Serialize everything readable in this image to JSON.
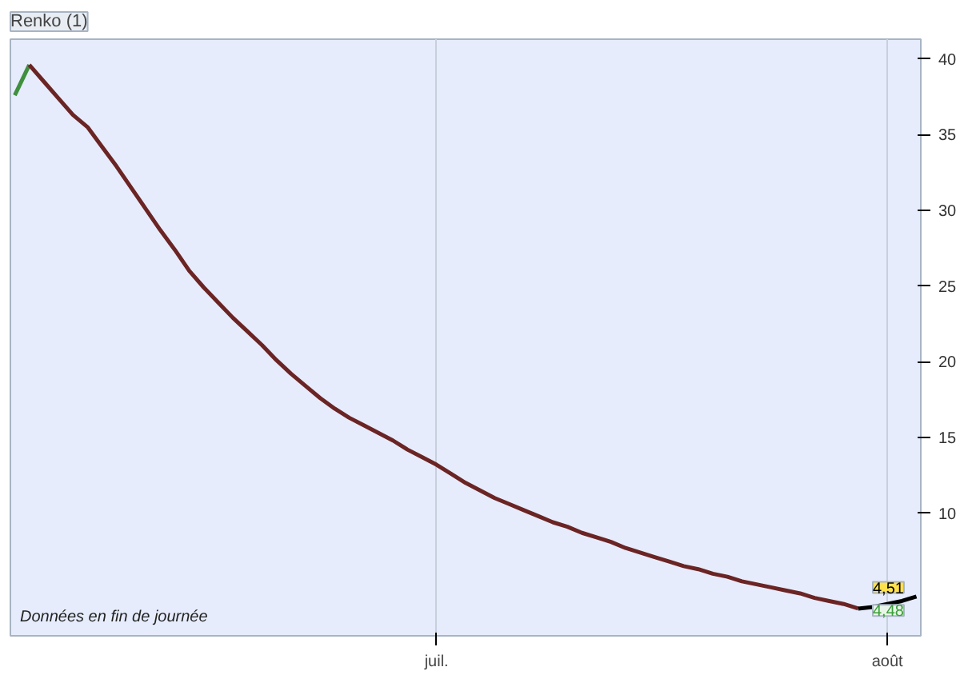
{
  "chart_data": {
    "type": "line",
    "title": "Renko (1)",
    "categories": [
      null,
      null,
      null,
      null,
      null,
      null,
      null,
      null,
      null,
      null,
      null,
      null,
      null,
      null,
      null,
      null,
      null,
      null,
      null,
      null,
      null,
      null,
      null,
      null,
      null,
      null,
      null,
      null,
      null,
      "juil.",
      null,
      null,
      null,
      null,
      null,
      null,
      null,
      null,
      null,
      null,
      null,
      null,
      null,
      null,
      null,
      null,
      null,
      null,
      null,
      null,
      null,
      null,
      null,
      null,
      null,
      null,
      null,
      null,
      null,
      null,
      "août",
      null,
      null
    ],
    "series": [
      {
        "color": "#3f8f3f",
        "values": [
          37.6,
          39.6,
          null,
          null,
          null,
          null,
          null,
          null,
          null,
          null,
          null,
          null,
          null,
          null,
          null,
          null,
          null,
          null,
          null,
          null,
          null,
          null,
          null,
          null,
          null,
          null,
          null,
          null,
          null,
          null,
          null,
          null,
          null,
          null,
          null,
          null,
          null,
          null,
          null,
          null,
          null,
          null,
          null,
          null,
          null,
          null,
          null,
          null,
          null,
          null,
          null,
          null,
          null,
          null,
          null,
          null,
          null,
          null,
          null,
          null,
          null,
          null,
          null
        ]
      },
      {
        "color": "#6b2424",
        "values": [
          null,
          39.6,
          38.5,
          37.4,
          36.3,
          35.5,
          34.2,
          32.9,
          31.5,
          30.1,
          28.7,
          27.4,
          26.0,
          24.9,
          23.9,
          22.9,
          22.0,
          21.1,
          20.1,
          19.2,
          18.4,
          17.6,
          16.9,
          16.3,
          15.8,
          15.3,
          14.8,
          14.2,
          13.7,
          13.2,
          12.6,
          12.0,
          11.5,
          11.0,
          10.6,
          10.2,
          9.8,
          9.4,
          9.1,
          8.7,
          8.4,
          8.1,
          7.7,
          7.4,
          7.1,
          6.8,
          6.5,
          6.3,
          6.0,
          5.8,
          5.5,
          5.3,
          5.1,
          4.9,
          4.7,
          4.4,
          4.2,
          4.0,
          3.7,
          null,
          null,
          null,
          null
        ]
      },
      {
        "color": "#000000",
        "values": [
          null,
          null,
          null,
          null,
          null,
          null,
          null,
          null,
          null,
          null,
          null,
          null,
          null,
          null,
          null,
          null,
          null,
          null,
          null,
          null,
          null,
          null,
          null,
          null,
          null,
          null,
          null,
          null,
          null,
          null,
          null,
          null,
          null,
          null,
          null,
          null,
          null,
          null,
          null,
          null,
          null,
          null,
          null,
          null,
          null,
          null,
          null,
          null,
          null,
          null,
          null,
          null,
          null,
          null,
          null,
          null,
          null,
          null,
          3.7,
          3.8,
          4.0,
          4.2,
          4.5
        ]
      }
    ],
    "ylim": [
      1.9,
      41.3
    ],
    "yticks": [
      10,
      15,
      20,
      25,
      30,
      35,
      40
    ],
    "grid": "x",
    "line_style": "solid",
    "annotations": [
      "Données en fin de journée",
      {
        "text": "4,51",
        "y": 4.51
      },
      {
        "text": "4,48",
        "y": 4.48
      }
    ]
  }
}
